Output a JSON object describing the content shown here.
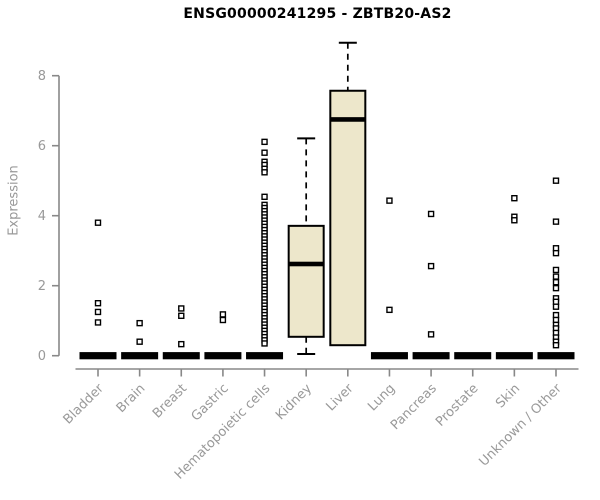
{
  "page": {
    "title": "ENSG00000241295 - ZBTB20-AS2"
  },
  "chart_data": {
    "type": "boxplot",
    "title": "ENSG00000241295 - ZBTB20-AS2",
    "xlabel": "",
    "ylabel": "Expression",
    "ylim": [
      0,
      9.2
    ],
    "yticks": [
      0,
      2,
      4,
      6,
      8
    ],
    "grid": false,
    "legend": "none",
    "categories": [
      "Bladder",
      "Brain",
      "Breast",
      "Gastric",
      "Hematopoietic cells",
      "Kidney",
      "Liver",
      "Lung",
      "Pancreas",
      "Prostate",
      "Skin",
      "Unknown / Other"
    ],
    "series": [
      {
        "category": "Bladder",
        "collapsed": true,
        "q1": 0,
        "median": 0,
        "q3": 0,
        "whisker_low": 0,
        "whisker_high": 0,
        "outliers": [
          3.8,
          1.5,
          1.25,
          0.95
        ]
      },
      {
        "category": "Brain",
        "collapsed": true,
        "q1": 0,
        "median": 0,
        "q3": 0,
        "whisker_low": 0,
        "whisker_high": 0,
        "outliers": [
          0.93,
          0.4
        ]
      },
      {
        "category": "Breast",
        "collapsed": true,
        "q1": 0,
        "median": 0,
        "q3": 0,
        "whisker_low": 0,
        "whisker_high": 0,
        "outliers": [
          1.35,
          1.14,
          0.33
        ]
      },
      {
        "category": "Gastric",
        "collapsed": true,
        "q1": 0,
        "median": 0,
        "q3": 0,
        "whisker_low": 0,
        "whisker_high": 0,
        "outliers": [
          1.18,
          1.02
        ]
      },
      {
        "category": "Hematopoietic cells",
        "collapsed": true,
        "q1": 0,
        "median": 0,
        "q3": 0,
        "whisker_low": 0,
        "whisker_high": 0,
        "outliers": [
          6.11,
          5.8,
          5.54,
          5.45,
          5.34,
          5.24,
          4.54,
          4.31,
          4.22,
          4.13,
          4.04,
          3.95,
          3.86,
          3.77,
          3.68,
          3.59,
          3.5,
          3.41,
          3.32,
          3.23,
          3.14,
          3.05,
          2.96,
          2.87,
          2.78,
          2.69,
          2.6,
          2.51,
          2.42,
          2.33,
          2.24,
          2.15,
          2.06,
          1.97,
          1.88,
          1.79,
          1.7,
          1.61,
          1.52,
          1.43,
          1.34,
          1.25,
          1.16,
          1.07,
          0.98,
          0.89,
          0.8,
          0.71,
          0.62,
          0.53,
          0.44,
          0.35
        ]
      },
      {
        "category": "Kidney",
        "collapsed": false,
        "q1": 0.54,
        "median": 2.62,
        "q3": 3.71,
        "whisker_low": 0.05,
        "whisker_high": 6.21,
        "outliers": []
      },
      {
        "category": "Liver",
        "collapsed": false,
        "q1": 0.3,
        "median": 6.75,
        "q3": 7.57,
        "whisker_low": 0.3,
        "whisker_high": 8.94,
        "outliers": []
      },
      {
        "category": "Lung",
        "collapsed": true,
        "q1": 0,
        "median": 0,
        "q3": 0,
        "whisker_low": 0,
        "whisker_high": 0,
        "outliers": [
          4.43,
          1.31
        ]
      },
      {
        "category": "Pancreas",
        "collapsed": true,
        "q1": 0,
        "median": 0,
        "q3": 0,
        "whisker_low": 0,
        "whisker_high": 0,
        "outliers": [
          4.05,
          2.56,
          0.61
        ]
      },
      {
        "category": "Prostate",
        "collapsed": true,
        "q1": 0,
        "median": 0,
        "q3": 0,
        "whisker_low": 0,
        "whisker_high": 0,
        "outliers": []
      },
      {
        "category": "Skin",
        "collapsed": true,
        "q1": 0,
        "median": 0,
        "q3": 0,
        "whisker_low": 0,
        "whisker_high": 0,
        "outliers": [
          4.5,
          3.97,
          3.87
        ]
      },
      {
        "category": "Unknown / Other",
        "collapsed": true,
        "q1": 0,
        "median": 0,
        "q3": 0,
        "whisker_low": 0,
        "whisker_high": 0,
        "outliers": [
          5.0,
          3.83,
          3.07,
          2.93,
          2.45,
          2.26,
          2.1,
          1.93,
          1.64,
          1.54,
          1.4,
          1.16,
          1.02,
          0.88,
          0.78,
          0.65,
          0.52,
          0.4,
          0.3
        ]
      }
    ],
    "colors": {
      "box_fill": "#EDE7CB",
      "box_stroke": "#000000",
      "median": "#000000",
      "outlier_stroke": "#000000",
      "outlier_fill": "#ffffff",
      "axis_line": "#888888",
      "tick_label": "#999999",
      "title": "#000000",
      "background": "#ffffff"
    }
  }
}
